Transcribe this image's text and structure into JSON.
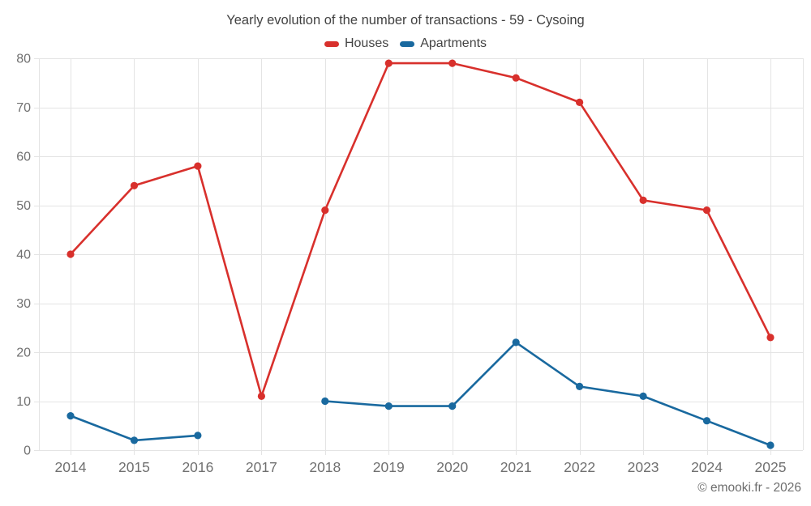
{
  "chart": {
    "title": "Yearly evolution of the number of transactions - 59 - Cysoing"
  },
  "legend": {
    "houses_label": "Houses",
    "apartments_label": "Apartments"
  },
  "footer": {
    "copyright": "© emooki.fr - 2026"
  },
  "colors": {
    "houses": "#d8302c",
    "apartments": "#19699f",
    "gridline": "#e4e4e4",
    "tick_label": "#707070",
    "title_text": "#424242"
  },
  "chart_data": {
    "type": "line",
    "title": "Yearly evolution of the number of transactions - 59 - Cysoing",
    "categories": [
      "2014",
      "2015",
      "2016",
      "2017",
      "2018",
      "2019",
      "2020",
      "2021",
      "2022",
      "2023",
      "2024",
      "2025"
    ],
    "series": [
      {
        "name": "Houses",
        "color": "#d8302c",
        "values": [
          40,
          54,
          58,
          11,
          49,
          79,
          79,
          76,
          71,
          51,
          49,
          23
        ]
      },
      {
        "name": "Apartments",
        "color": "#19699f",
        "values": [
          7,
          2,
          3,
          null,
          10,
          9,
          9,
          22,
          13,
          11,
          6,
          1
        ]
      }
    ],
    "xlabel": "",
    "ylabel": "",
    "ylim": [
      0,
      80
    ],
    "ytick_step": 10,
    "grid": true,
    "legend_position": "top",
    "annotations": [
      "© emooki.fr - 2026"
    ]
  }
}
